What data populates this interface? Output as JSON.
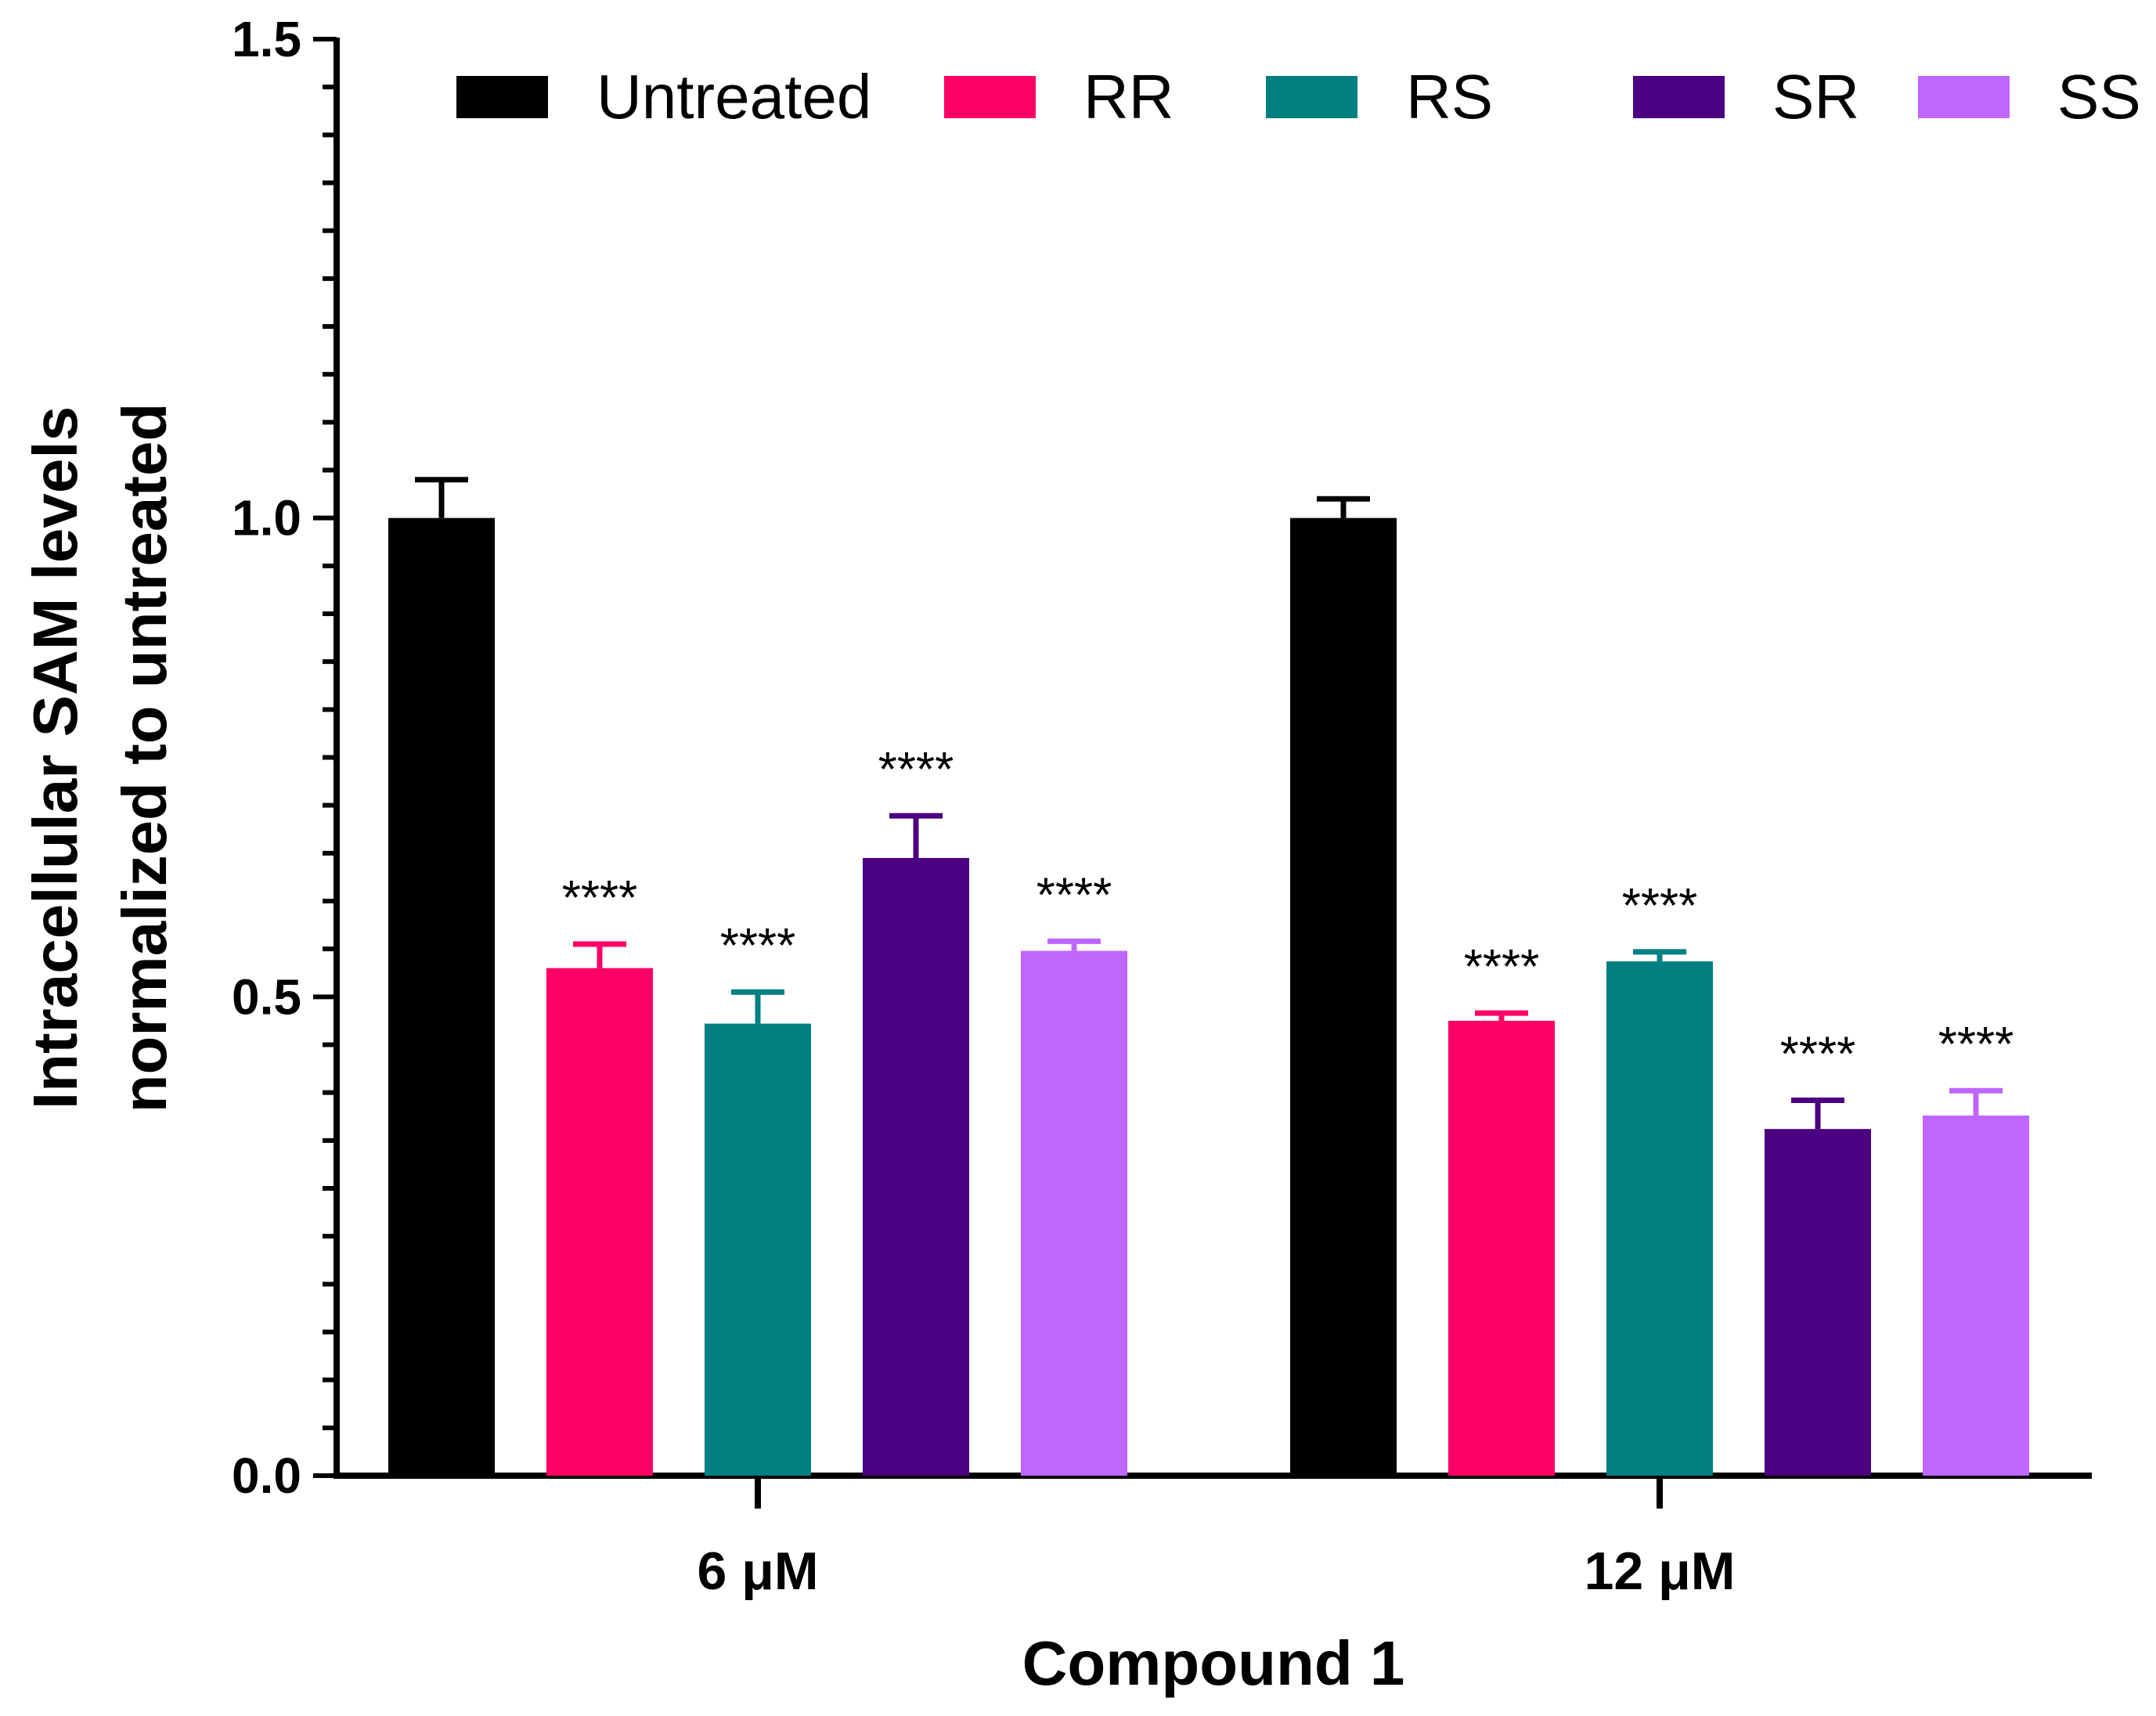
{
  "chart_data": {
    "type": "bar",
    "title": "",
    "xlabel": "Compound 1",
    "ylabel_lines": [
      "Intracellular SAM levels",
      "normalized to untreated"
    ],
    "ylim": [
      0,
      1.5
    ],
    "yticks": [
      "0.0",
      "0.5",
      "1.0",
      "1.5"
    ],
    "ytick_values": [
      0,
      0.5,
      1.0,
      1.5
    ],
    "minor_tick_step": 0.05,
    "grid": false,
    "legend_position": "top",
    "categories": [
      "6 μM",
      "12 μM"
    ],
    "series": [
      {
        "name": "Untreated",
        "color": "#000000",
        "values": [
          1.0,
          1.0
        ],
        "errors": [
          0.04,
          0.02
        ],
        "significance": [
          "",
          ""
        ]
      },
      {
        "name": "RR",
        "color": "#ff0066",
        "values": [
          0.53,
          0.475
        ],
        "errors": [
          0.025,
          0.008
        ],
        "significance": [
          "****",
          "****"
        ]
      },
      {
        "name": "RS",
        "color": "#008080",
        "values": [
          0.472,
          0.537
        ],
        "errors": [
          0.033,
          0.01
        ],
        "significance": [
          "****",
          "****"
        ]
      },
      {
        "name": "SR",
        "color": "#4b0082",
        "values": [
          0.645,
          0.362
        ],
        "errors": [
          0.044,
          0.03
        ],
        "significance": [
          "****",
          "****"
        ]
      },
      {
        "name": "SS",
        "color": "#bf66ff",
        "values": [
          0.548,
          0.376
        ],
        "errors": [
          0.01,
          0.026
        ],
        "significance": [
          "****",
          "****"
        ]
      }
    ]
  }
}
